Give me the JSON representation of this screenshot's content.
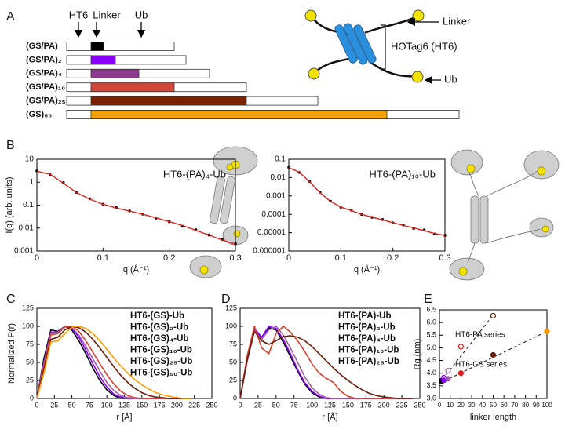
{
  "panel_labels": [
    "A",
    "B",
    "C",
    "D",
    "E"
  ],
  "constructs": {
    "header": [
      "HT6",
      "Linker",
      "Ub"
    ],
    "rows": [
      {
        "label": "(GS/PA)",
        "color": "#000000"
      },
      {
        "label": "(GS/PA)₂",
        "color": "#8b00ff"
      },
      {
        "label": "(GS/PA)₄",
        "color": "#8e3a8e"
      },
      {
        "label": "(GS/PA)₁₀",
        "color": "#d2493a"
      },
      {
        "label": "(GS/PA)₂₅",
        "color": "#7a2200"
      },
      {
        "label": "(GS)₅₀",
        "color": "#f5a300"
      }
    ]
  },
  "schematic": {
    "linker": "Linker",
    "domain": "HOTag6 (HT6)",
    "ub": "Ub"
  },
  "chart_data": [
    {
      "type": "line",
      "annotation": "HT6-(PA)₄-Ub",
      "xlabel": "q (Å⁻¹)",
      "ylabel": "I(q) (arb. units)",
      "log_y": true,
      "x": [
        0,
        0.02,
        0.04,
        0.06,
        0.08,
        0.1,
        0.12,
        0.14,
        0.16,
        0.18,
        0.2,
        0.22,
        0.24,
        0.26,
        0.28,
        0.3
      ],
      "xlim": [
        0,
        0.3
      ],
      "xticks": [
        0,
        0.1,
        0.2,
        0.3
      ],
      "ylim": [
        0.001,
        10
      ],
      "yticks": [
        0.001,
        0.01,
        0.1,
        1,
        10
      ],
      "series": [
        {
          "color": "#000000",
          "style": "points",
          "values": [
            3.1,
            2.1,
            0.95,
            0.36,
            0.19,
            0.11,
            0.078,
            0.056,
            0.041,
            0.027,
            0.019,
            0.012,
            0.0085,
            0.005,
            0.0032,
            0.0021
          ]
        },
        {
          "color": "#e0201b",
          "style": "line",
          "values": [
            3,
            2.2,
            0.9,
            0.35,
            0.18,
            0.11,
            0.075,
            0.055,
            0.04,
            0.028,
            0.019,
            0.013,
            0.008,
            0.005,
            0.003,
            0.002
          ]
        }
      ]
    },
    {
      "type": "line",
      "annotation": "HT6-(PA)₁₀-Ub",
      "xlabel": "q (Å⁻¹)",
      "log_y": true,
      "x": [
        0,
        0.02,
        0.04,
        0.06,
        0.08,
        0.1,
        0.12,
        0.14,
        0.16,
        0.18,
        0.2,
        0.22,
        0.24,
        0.26,
        0.28,
        0.3
      ],
      "xlim": [
        0,
        0.3
      ],
      "xticks": [
        0,
        0.1,
        0.2,
        0.3
      ],
      "ylim": [
        1e-06,
        0.1
      ],
      "yticks": [
        1e-06,
        1e-05,
        0.0001,
        0.001,
        0.01,
        0.1
      ],
      "series": [
        {
          "color": "#000000",
          "style": "points",
          "values": [
            0.036,
            0.019,
            0.0062,
            0.0016,
            0.00052,
            0.00024,
            0.00017,
            0.0001,
            6.8e-05,
            5.2e-05,
            3.4e-05,
            2.6e-05,
            1.7e-05,
            1.4e-05,
            8.5e-06,
            7.2e-06
          ]
        },
        {
          "color": "#e0201b",
          "style": "line",
          "values": [
            0.035,
            0.02,
            0.006,
            0.0015,
            0.0005,
            0.00025,
            0.00016,
            0.0001,
            7e-05,
            5e-05,
            3.5e-05,
            2.5e-05,
            1.8e-05,
            1.3e-05,
            9e-06,
            7e-06
          ]
        }
      ]
    },
    {
      "type": "line",
      "xlabel": "r [Å]",
      "ylabel": "Normalized P(r)",
      "legend": "top-right",
      "x": [
        0,
        10,
        20,
        30,
        40,
        50,
        60,
        70,
        80,
        90,
        100,
        110,
        120,
        130,
        140,
        150,
        160,
        170,
        180,
        190,
        200,
        210,
        220
      ],
      "xlim": [
        0,
        250
      ],
      "xticks": [
        0,
        25,
        50,
        75,
        100,
        125,
        150,
        175,
        200,
        225,
        250
      ],
      "ylim": [
        0,
        125
      ],
      "yticks": [
        0,
        25,
        50,
        75,
        100,
        125
      ],
      "series": [
        {
          "name": "HT6-(GS)-Ub",
          "color": "#000000",
          "style": "line",
          "values": [
            0,
            55,
            95,
            93,
            100,
            95,
            80,
            62,
            42,
            25,
            12,
            4,
            0,
            0,
            0,
            0,
            0,
            0,
            0,
            0,
            0,
            0,
            0
          ]
        },
        {
          "name": "HT6-(GS)₂-Ub",
          "color": "#8b00ff",
          "style": "line",
          "values": [
            0,
            50,
            92,
            92,
            100,
            97,
            85,
            67,
            48,
            30,
            16,
            6,
            2,
            0,
            0,
            0,
            0,
            0,
            0,
            0,
            0,
            0,
            0
          ]
        },
        {
          "name": "HT6-(GS)₄-Ub",
          "color": "#a05fb0",
          "style": "line",
          "values": [
            0,
            48,
            90,
            92,
            100,
            98,
            88,
            72,
            55,
            38,
            22,
            11,
            4,
            1,
            0,
            0,
            0,
            0,
            0,
            0,
            0,
            0,
            0
          ]
        },
        {
          "name": "HT6-(GS)₁₀-Ub",
          "color": "#d8402e",
          "style": "line",
          "values": [
            0,
            45,
            88,
            90,
            99,
            100,
            93,
            80,
            64,
            48,
            33,
            20,
            10,
            4,
            1,
            0,
            0,
            0,
            0,
            0,
            0,
            0,
            0
          ]
        },
        {
          "name": "HT6-(GS)₂₅-Ub",
          "color": "#6b1e0a",
          "style": "line",
          "values": [
            0,
            40,
            82,
            85,
            95,
            100,
            98,
            92,
            82,
            70,
            57,
            44,
            32,
            22,
            14,
            8,
            4,
            2,
            1,
            0,
            0,
            0,
            0
          ]
        },
        {
          "name": "HT6-(GS)₅₀-Ub",
          "color": "#ff9900",
          "style": "line",
          "values": [
            0,
            35,
            78,
            80,
            90,
            99,
            100,
            97,
            90,
            80,
            68,
            56,
            45,
            35,
            26,
            19,
            13,
            8,
            5,
            3,
            1,
            0,
            0
          ]
        }
      ]
    },
    {
      "type": "line",
      "xlabel": "r [Å]",
      "legend": "top-right",
      "x": [
        0,
        10,
        20,
        30,
        40,
        50,
        60,
        70,
        80,
        90,
        100,
        110,
        120,
        130,
        140,
        150,
        160,
        170,
        180,
        190,
        200,
        210,
        220,
        230,
        240
      ],
      "xlim": [
        0,
        250
      ],
      "xticks": [
        0,
        25,
        50,
        75,
        100,
        125,
        150,
        175,
        200,
        225,
        250
      ],
      "ylim": [
        0,
        125
      ],
      "yticks": [
        0,
        25,
        50,
        75,
        100,
        125
      ],
      "series": [
        {
          "name": "HT6-(PA)-Ub",
          "color": "#000000",
          "style": "line",
          "values": [
            0,
            55,
            95,
            85,
            98,
            95,
            78,
            58,
            38,
            20,
            8,
            2,
            0,
            0,
            0,
            0,
            0,
            0,
            0,
            0,
            0,
            0,
            0,
            0,
            0
          ]
        },
        {
          "name": "HT6-(PA)₂-Ub",
          "color": "#8b00ff",
          "style": "line",
          "values": [
            0,
            55,
            97,
            85,
            100,
            97,
            82,
            62,
            40,
            22,
            10,
            3,
            0,
            0,
            0,
            0,
            0,
            0,
            0,
            0,
            0,
            0,
            0,
            0,
            0
          ]
        },
        {
          "name": "HT6-(PA)₄-Ub",
          "color": "#a05fb0",
          "style": "line",
          "values": [
            0,
            52,
            94,
            82,
            95,
            100,
            88,
            70,
            50,
            30,
            15,
            6,
            1,
            0,
            0,
            0,
            0,
            0,
            0,
            0,
            0,
            0,
            0,
            0,
            0
          ]
        },
        {
          "name": "HT6-(PA)₁₀-Ub",
          "color": "#d8402e",
          "style": "line",
          "values": [
            0,
            60,
            100,
            70,
            62,
            90,
            100,
            92,
            80,
            65,
            48,
            35,
            28,
            22,
            10,
            3,
            0,
            0,
            0,
            0,
            0,
            0,
            0,
            0,
            0
          ]
        },
        {
          "name": "HT6-(PA)₂₅-Ub",
          "color": "#6b1e0a",
          "style": "line",
          "values": [
            0,
            55,
            93,
            80,
            75,
            80,
            86,
            87,
            85,
            80,
            72,
            62,
            52,
            42,
            33,
            25,
            18,
            12,
            7,
            4,
            2,
            1,
            0,
            0,
            0
          ]
        }
      ]
    },
    {
      "type": "scatter",
      "xlabel": "linker length",
      "ylabel": "Rg (nm)",
      "xlim": [
        0,
        100
      ],
      "xticks": [
        0,
        10,
        20,
        30,
        40,
        50,
        60,
        70,
        80,
        90,
        100
      ],
      "ylim": [
        3,
        6.5
      ],
      "yticks": [
        {
          "value": 3,
          "label": "3.0"
        },
        3.5,
        {
          "value": 4,
          "label": "4.0"
        },
        4.5,
        {
          "value": 5,
          "label": "5.0"
        },
        5.5,
        {
          "value": 6,
          "label": "6.0"
        },
        6.5
      ],
      "series": [
        {
          "label": "HT6-PA series",
          "filled": false,
          "x": [
            2,
            4,
            8,
            20,
            50
          ],
          "values": [
            3.7,
            3.82,
            4.1,
            5.05,
            6.27
          ],
          "point_colors": [
            "#000000",
            "#8b00ff",
            "#a05fb0",
            "#e0201b",
            "#6b1e0a"
          ],
          "trend": {
            "x": [
              0,
              50
            ],
            "y": [
              3.6,
              6.3
            ]
          }
        },
        {
          "label": "HT6-GS series",
          "filled": true,
          "x": [
            2,
            4,
            8,
            20,
            50,
            100
          ],
          "values": [
            3.68,
            3.72,
            3.78,
            4,
            4.72,
            5.65
          ],
          "point_colors": [
            "#000000",
            "#8b00ff",
            "#a05fb0",
            "#e0201b",
            "#6b1e0a",
            "#ff9900"
          ],
          "trend": {
            "x": [
              0,
              100
            ],
            "y": [
              3.6,
              5.65
            ]
          }
        }
      ]
    }
  ]
}
